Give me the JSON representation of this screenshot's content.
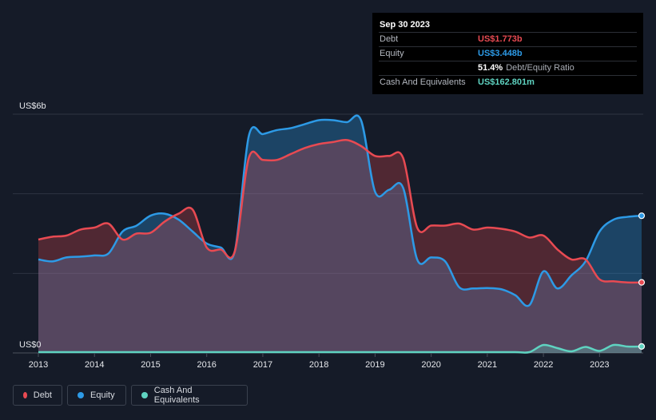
{
  "chart_data": {
    "type": "area",
    "y_axis": {
      "top_label": "US$6b",
      "bottom_label": "US$0",
      "ylim": [
        0,
        6
      ]
    },
    "x_ticks": [
      "2013",
      "2014",
      "2015",
      "2016",
      "2017",
      "2018",
      "2019",
      "2020",
      "2021",
      "2022",
      "2023"
    ],
    "xlim": [
      2013.0,
      2023.75
    ],
    "series": [
      {
        "name": "Debt",
        "color": "#e84a52",
        "points": [
          [
            2013.0,
            2.85
          ],
          [
            2013.25,
            2.92
          ],
          [
            2013.5,
            2.95
          ],
          [
            2013.75,
            3.1
          ],
          [
            2014.0,
            3.15
          ],
          [
            2014.25,
            3.25
          ],
          [
            2014.5,
            2.85
          ],
          [
            2014.75,
            3.0
          ],
          [
            2015.0,
            3.02
          ],
          [
            2015.25,
            3.3
          ],
          [
            2015.5,
            3.5
          ],
          [
            2015.75,
            3.6
          ],
          [
            2016.0,
            2.65
          ],
          [
            2016.25,
            2.6
          ],
          [
            2016.5,
            2.55
          ],
          [
            2016.75,
            4.9
          ],
          [
            2017.0,
            4.85
          ],
          [
            2017.25,
            4.85
          ],
          [
            2017.5,
            5.0
          ],
          [
            2017.75,
            5.15
          ],
          [
            2018.0,
            5.25
          ],
          [
            2018.25,
            5.3
          ],
          [
            2018.5,
            5.35
          ],
          [
            2018.75,
            5.2
          ],
          [
            2019.0,
            4.95
          ],
          [
            2019.25,
            4.95
          ],
          [
            2019.5,
            4.9
          ],
          [
            2019.75,
            3.15
          ],
          [
            2020.0,
            3.2
          ],
          [
            2020.25,
            3.2
          ],
          [
            2020.5,
            3.25
          ],
          [
            2020.75,
            3.1
          ],
          [
            2021.0,
            3.15
          ],
          [
            2021.25,
            3.12
          ],
          [
            2021.5,
            3.05
          ],
          [
            2021.75,
            2.9
          ],
          [
            2022.0,
            2.95
          ],
          [
            2022.25,
            2.6
          ],
          [
            2022.5,
            2.35
          ],
          [
            2022.75,
            2.35
          ],
          [
            2023.0,
            1.85
          ],
          [
            2023.25,
            1.8
          ],
          [
            2023.5,
            1.77
          ],
          [
            2023.75,
            1.773
          ]
        ]
      },
      {
        "name": "Equity",
        "color": "#2d9ae6",
        "points": [
          [
            2013.0,
            2.35
          ],
          [
            2013.25,
            2.3
          ],
          [
            2013.5,
            2.4
          ],
          [
            2013.75,
            2.42
          ],
          [
            2014.0,
            2.45
          ],
          [
            2014.25,
            2.5
          ],
          [
            2014.5,
            3.05
          ],
          [
            2014.75,
            3.2
          ],
          [
            2015.0,
            3.45
          ],
          [
            2015.25,
            3.5
          ],
          [
            2015.5,
            3.35
          ],
          [
            2015.75,
            3.05
          ],
          [
            2016.0,
            2.75
          ],
          [
            2016.25,
            2.65
          ],
          [
            2016.5,
            2.55
          ],
          [
            2016.75,
            5.45
          ],
          [
            2017.0,
            5.5
          ],
          [
            2017.25,
            5.6
          ],
          [
            2017.5,
            5.65
          ],
          [
            2017.75,
            5.75
          ],
          [
            2018.0,
            5.85
          ],
          [
            2018.25,
            5.85
          ],
          [
            2018.5,
            5.8
          ],
          [
            2018.75,
            5.85
          ],
          [
            2019.0,
            4.05
          ],
          [
            2019.25,
            4.1
          ],
          [
            2019.5,
            4.15
          ],
          [
            2019.75,
            2.35
          ],
          [
            2020.0,
            2.4
          ],
          [
            2020.25,
            2.3
          ],
          [
            2020.5,
            1.65
          ],
          [
            2020.75,
            1.62
          ],
          [
            2021.0,
            1.63
          ],
          [
            2021.25,
            1.6
          ],
          [
            2021.5,
            1.45
          ],
          [
            2021.75,
            1.2
          ],
          [
            2022.0,
            2.05
          ],
          [
            2022.25,
            1.62
          ],
          [
            2022.5,
            1.95
          ],
          [
            2022.75,
            2.3
          ],
          [
            2023.0,
            3.05
          ],
          [
            2023.25,
            3.35
          ],
          [
            2023.5,
            3.42
          ],
          [
            2023.75,
            3.448
          ]
        ]
      },
      {
        "name": "Cash And Equivalents",
        "color": "#5fd3c1",
        "points": [
          [
            2013.0,
            0.02
          ],
          [
            2013.5,
            0.02
          ],
          [
            2014.0,
            0.02
          ],
          [
            2014.5,
            0.02
          ],
          [
            2015.0,
            0.02
          ],
          [
            2015.5,
            0.02
          ],
          [
            2016.0,
            0.02
          ],
          [
            2016.5,
            0.02
          ],
          [
            2017.0,
            0.02
          ],
          [
            2017.5,
            0.02
          ],
          [
            2018.0,
            0.02
          ],
          [
            2018.5,
            0.02
          ],
          [
            2019.0,
            0.02
          ],
          [
            2019.5,
            0.02
          ],
          [
            2020.0,
            0.02
          ],
          [
            2020.5,
            0.02
          ],
          [
            2021.0,
            0.02
          ],
          [
            2021.5,
            0.02
          ],
          [
            2021.75,
            0.02
          ],
          [
            2022.0,
            0.2
          ],
          [
            2022.25,
            0.12
          ],
          [
            2022.5,
            0.04
          ],
          [
            2022.75,
            0.15
          ],
          [
            2023.0,
            0.05
          ],
          [
            2023.25,
            0.2
          ],
          [
            2023.5,
            0.16
          ],
          [
            2023.75,
            0.163
          ]
        ]
      }
    ]
  },
  "tooltip": {
    "date": "Sep 30 2023",
    "debt_label": "Debt",
    "debt_value": "US$1.773b",
    "equity_label": "Equity",
    "equity_value": "US$3.448b",
    "ratio_value": "51.4%",
    "ratio_label": "Debt/Equity Ratio",
    "cash_label": "Cash And Equivalents",
    "cash_value": "US$162.801m"
  },
  "legend": {
    "debt": "Debt",
    "equity": "Equity",
    "cash": "Cash And Equivalents",
    "debt_color": "#e84a52",
    "equity_color": "#2d9ae6",
    "cash_color": "#5fd3c1"
  }
}
